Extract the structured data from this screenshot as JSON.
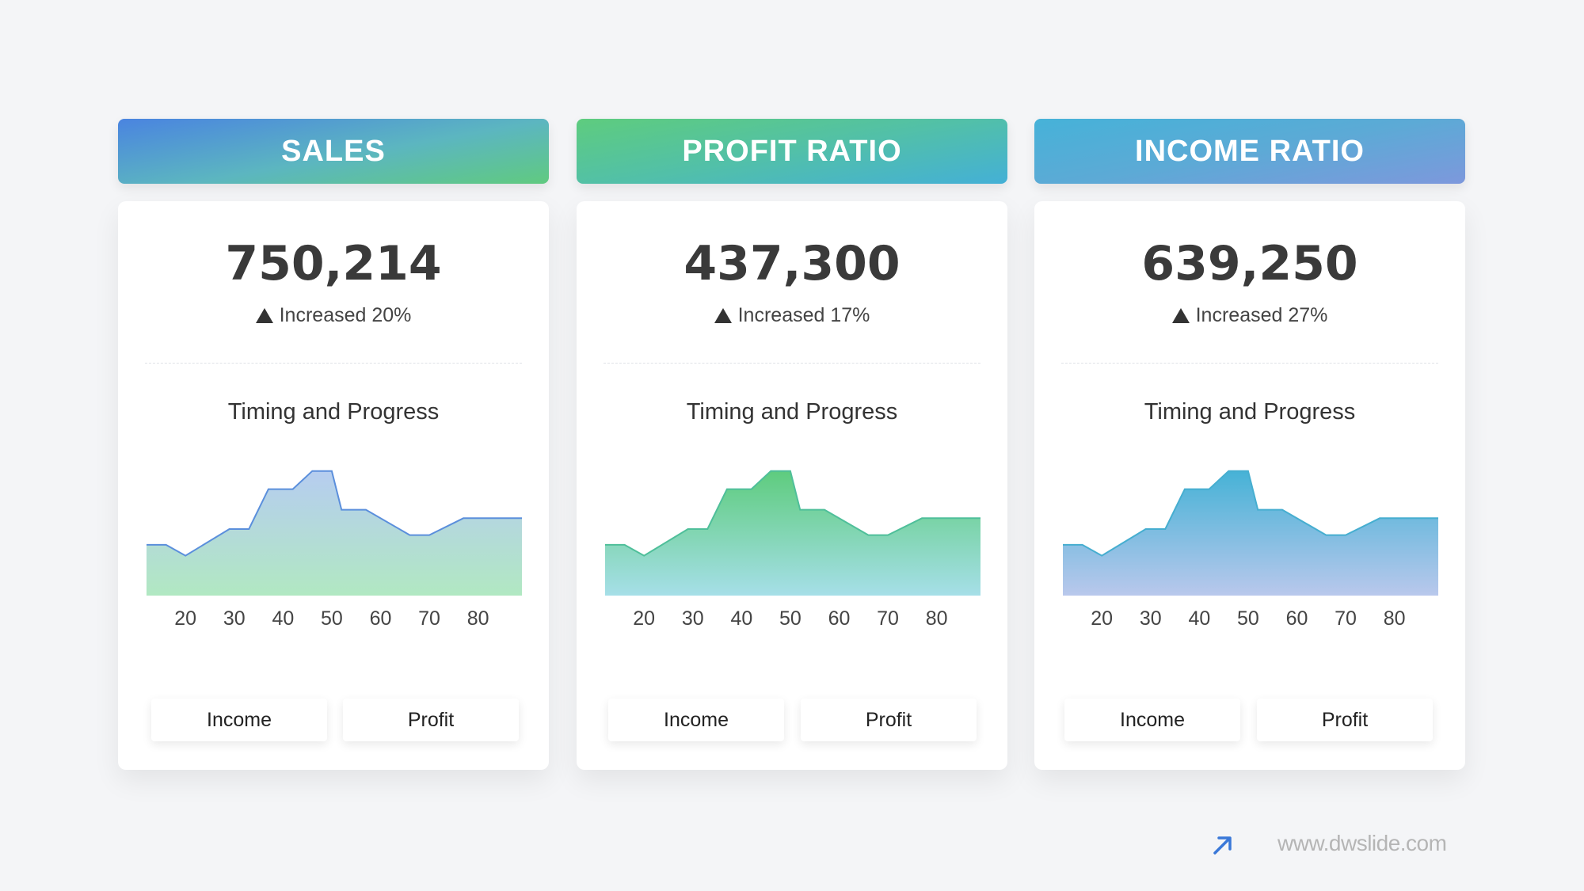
{
  "colors": {
    "sales_header": [
      "#4a84e0",
      "#5fc884"
    ],
    "profit_header": [
      "#5ecc7e",
      "#48b2d6"
    ],
    "income_header": [
      "#4ab4d8",
      "#7a98dc"
    ]
  },
  "panels": [
    {
      "title": "SALES",
      "value": "750,214",
      "change": "Increased 20%",
      "chart_title": "Timing and Progress",
      "buttons": {
        "income": "Income",
        "profit": "Profit"
      },
      "area_colors": {
        "top": "#b6cdf0",
        "bottom": "#b1e8c2",
        "line": "#5b8fdc"
      }
    },
    {
      "title": "PROFIT RATIO",
      "value": "437,300",
      "change": "Increased 17%",
      "chart_title": "Timing and Progress",
      "buttons": {
        "income": "Income",
        "profit": "Profit"
      },
      "area_colors": {
        "top": "#5ecc7e",
        "bottom": "#a6dfe8",
        "line": "#4fbf9a"
      }
    },
    {
      "title": "INCOME RATIO",
      "value": "639,250",
      "change": "Increased 27%",
      "chart_title": "Timing and Progress",
      "buttons": {
        "income": "Income",
        "profit": "Profit"
      },
      "area_colors": {
        "top": "#46b2d6",
        "bottom": "#b9c8ec",
        "line": "#46aed0"
      }
    }
  ],
  "chart_data": [
    {
      "type": "area",
      "title": "Timing and Progress",
      "x": [
        12,
        16,
        20,
        29,
        33,
        37,
        42,
        46,
        50,
        52,
        57,
        66,
        70,
        77,
        80,
        86,
        89
      ],
      "y": [
        42,
        42,
        33,
        55,
        55,
        88,
        88,
        103,
        103,
        71,
        71,
        50,
        50,
        64,
        64,
        64,
        64
      ],
      "x_ticks": [
        "20",
        "30",
        "40",
        "50",
        "60",
        "70",
        "80"
      ],
      "xlim": [
        12,
        89
      ],
      "ylim": [
        0,
        110
      ],
      "grid": false,
      "legend": "none"
    },
    {
      "type": "area",
      "title": "Timing and Progress",
      "x": [
        12,
        16,
        20,
        29,
        33,
        37,
        42,
        46,
        50,
        52,
        57,
        66,
        70,
        77,
        80,
        86,
        89
      ],
      "y": [
        42,
        42,
        33,
        55,
        55,
        88,
        88,
        103,
        103,
        71,
        71,
        50,
        50,
        64,
        64,
        64,
        64
      ],
      "x_ticks": [
        "20",
        "30",
        "40",
        "50",
        "60",
        "70",
        "80"
      ],
      "xlim": [
        12,
        89
      ],
      "ylim": [
        0,
        110
      ],
      "grid": false,
      "legend": "none"
    },
    {
      "type": "area",
      "title": "Timing and Progress",
      "x": [
        12,
        16,
        20,
        29,
        33,
        37,
        42,
        46,
        50,
        52,
        57,
        66,
        70,
        77,
        80,
        86,
        89
      ],
      "y": [
        42,
        42,
        33,
        55,
        55,
        88,
        88,
        103,
        103,
        71,
        71,
        50,
        50,
        64,
        64,
        64,
        64
      ],
      "x_ticks": [
        "20",
        "30",
        "40",
        "50",
        "60",
        "70",
        "80"
      ],
      "xlim": [
        12,
        89
      ],
      "ylim": [
        0,
        110
      ],
      "grid": false,
      "legend": "none"
    }
  ],
  "footer": {
    "url": "www.dwslide.com",
    "icon": "arrow-up-right-icon"
  }
}
